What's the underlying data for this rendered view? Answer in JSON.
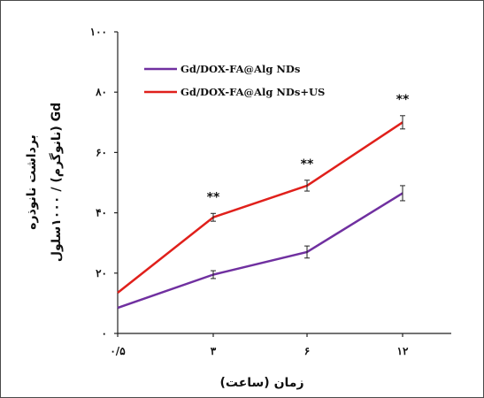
{
  "chart_data": {
    "type": "line",
    "x_categories": [
      "۰/۵",
      "۳",
      "۶",
      "۱۲"
    ],
    "y_ticks": [
      "۰",
      "۲۰",
      "۴۰",
      "۶۰",
      "۸۰",
      "۱۰۰"
    ],
    "ylim": [
      0,
      100
    ],
    "xlabel": "زمان (ساعت)",
    "ylabel_line1": "برداشت نانوذره",
    "ylabel_line2": "Gd (نانوگرم) / ۱۰۰۰سلول",
    "legend_position": "top-left",
    "grid": false,
    "series": [
      {
        "name": "Gd/DOX-FA@Alg NDs",
        "color": "#7030a0",
        "values": [
          8.5,
          19.5,
          27,
          46.5
        ],
        "errors": [
          0,
          1.3,
          2.0,
          2.5
        ]
      },
      {
        "name": "Gd/DOX-FA@Alg NDs+US",
        "color": "#e0201b",
        "values": [
          13.5,
          38.5,
          49,
          70
        ],
        "errors": [
          0,
          1.3,
          1.8,
          2.2
        ]
      }
    ],
    "annotations": [
      {
        "label": "**",
        "category_index": 1
      },
      {
        "label": "**",
        "category_index": 2
      },
      {
        "label": "**",
        "category_index": 3
      }
    ]
  }
}
